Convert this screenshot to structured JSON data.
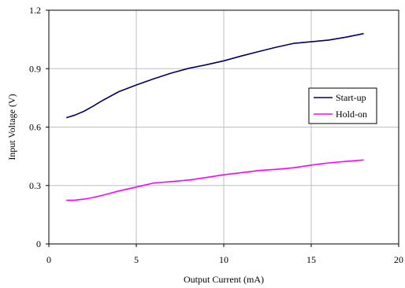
{
  "chart_data": {
    "type": "line",
    "title": "",
    "xlabel": "Output Current (mA)",
    "ylabel": "Input Voltage (V)",
    "xlim": [
      0,
      20
    ],
    "ylim": [
      0,
      1.2
    ],
    "xticks": [
      0,
      5,
      10,
      15,
      20
    ],
    "yticks": [
      0,
      0.3,
      0.6,
      0.9,
      1.2
    ],
    "xtick_labels": [
      "0",
      "5",
      "10",
      "15",
      "20"
    ],
    "ytick_labels": [
      "0",
      "0.3",
      "0.6",
      "0.9",
      "1.2"
    ],
    "grid": true,
    "legend_position": "right",
    "series": [
      {
        "name": "Start-up",
        "color": "#000066",
        "x": [
          1,
          1.5,
          2,
          2.5,
          3,
          4,
          5,
          6,
          7,
          8,
          9,
          10,
          11,
          12,
          13,
          14,
          15,
          16,
          17,
          18
        ],
        "y": [
          0.648,
          0.662,
          0.681,
          0.706,
          0.733,
          0.782,
          0.816,
          0.848,
          0.877,
          0.902,
          0.92,
          0.94,
          0.965,
          0.988,
          1.01,
          1.03,
          1.038,
          1.047,
          1.062,
          1.08
        ]
      },
      {
        "name": "Hold-on",
        "color": "#ff00ff",
        "x": [
          1,
          1.5,
          2,
          2.5,
          3,
          3.5,
          4,
          5,
          6,
          7,
          8,
          9,
          10,
          11,
          12,
          13,
          14,
          15,
          16,
          17,
          18
        ],
        "y": [
          0.224,
          0.225,
          0.23,
          0.238,
          0.248,
          0.26,
          0.272,
          0.292,
          0.313,
          0.32,
          0.328,
          0.341,
          0.355,
          0.366,
          0.377,
          0.383,
          0.391,
          0.405,
          0.416,
          0.424,
          0.431
        ]
      }
    ]
  }
}
